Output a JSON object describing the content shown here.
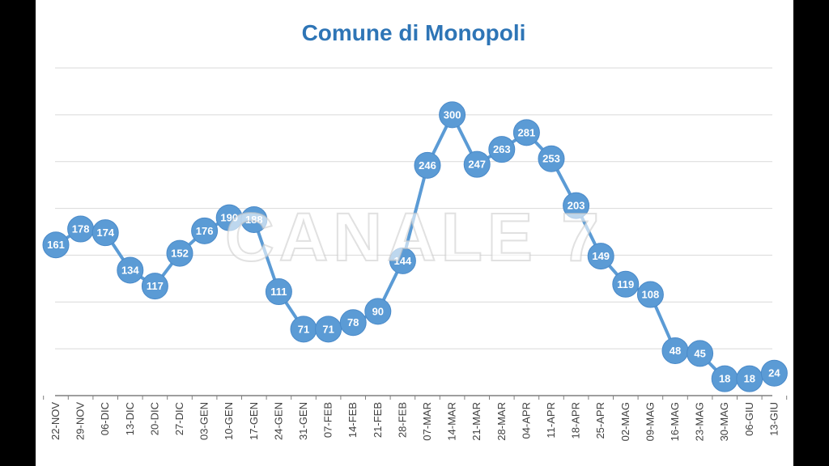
{
  "chart_data": {
    "type": "line",
    "title": "Comune di Monopoli",
    "xlabel": "",
    "ylabel": "",
    "ylim": [
      0,
      350
    ],
    "grid": true,
    "legend": "none",
    "categories": [
      "22-NOV",
      "29-NOV",
      "06-DIC",
      "13-DIC",
      "20-DIC",
      "27-DIC",
      "03-GEN",
      "10-GEN",
      "17-GEN",
      "24-GEN",
      "31-GEN",
      "07-FEB",
      "14-FEB",
      "21-FEB",
      "28-FEB",
      "07-MAR",
      "14-MAR",
      "21-MAR",
      "28-MAR",
      "04-APR",
      "11-APR",
      "18-APR",
      "25-APR",
      "02-MAG",
      "09-MAG",
      "16-MAG",
      "23-MAG",
      "30-MAG",
      "06-GIU",
      "13-GIU"
    ],
    "series": [
      {
        "values": [
          161,
          178,
          174,
          134,
          117,
          152,
          176,
          190,
          188,
          111,
          71,
          71,
          78,
          90,
          144,
          246,
          300,
          247,
          263,
          281,
          253,
          203,
          149,
          119,
          108,
          48,
          45,
          18,
          18,
          24
        ]
      }
    ]
  },
  "watermark": "CANALE 7",
  "colors": {
    "line": "#5b9bd5",
    "title": "#2e75b6",
    "grid": "#d9d9d9",
    "axis": "#7f7f7f",
    "tick_text": "#404040",
    "point_text": "#ffffff",
    "background": "#ffffff",
    "letterbox": "#000000"
  }
}
